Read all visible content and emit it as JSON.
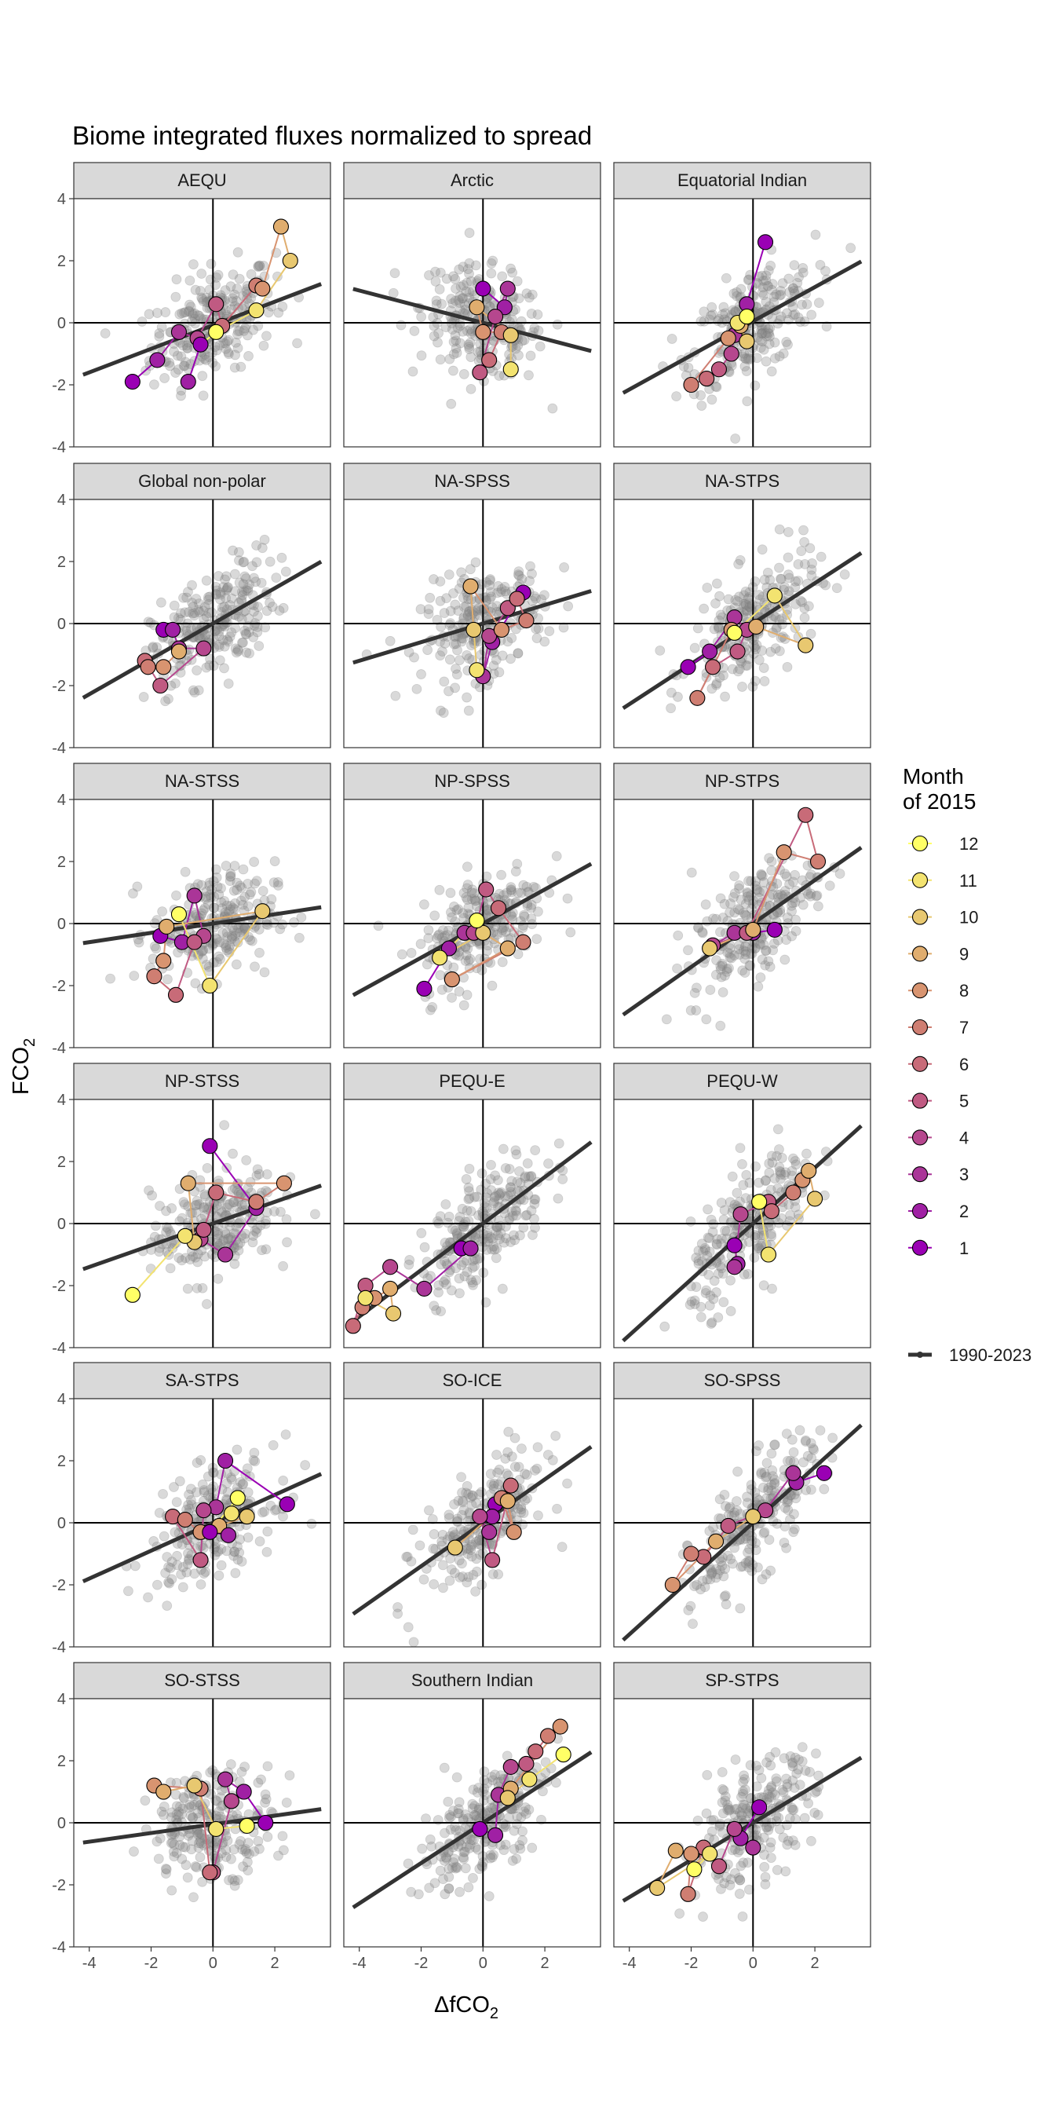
{
  "chart_data": {
    "type": "scatter",
    "title": "Biome integrated fluxes normalized to spread",
    "xlabel": "ΔfCO",
    "xlabel_sub": "2",
    "ylabel": "FCO",
    "ylabel_sub": "2",
    "xlim": [
      -4.5,
      3.8
    ],
    "ylim": [
      -4,
      4
    ],
    "x_ticks": [
      -4,
      -2,
      0,
      2
    ],
    "y_ticks": [
      -4,
      -2,
      0,
      2,
      4
    ],
    "legend": {
      "title_line1": "Month",
      "title_line2": "of 2015",
      "placement": "right",
      "months": [
        "12",
        "11",
        "10",
        "9",
        "8",
        "7",
        "6",
        "5",
        "4",
        "3",
        "2",
        "1"
      ],
      "month_colors": [
        "#ffff66",
        "#f3e370",
        "#e8c870",
        "#e0ad6e",
        "#d89470",
        "#cf7e72",
        "#c86b78",
        "#c05a82",
        "#b6478e",
        "#aa3598",
        "#a020a4",
        "#9a00b4"
      ],
      "fit_label": "1990-2023"
    },
    "panels": [
      {
        "name": "AEQU",
        "fit": [
          0.38,
          -0.08
        ],
        "months": [
          [
            -2.6,
            -1.9
          ],
          [
            -1.8,
            -1.2
          ],
          [
            -1.1,
            -0.3
          ],
          [
            -0.5,
            -0.5
          ],
          [
            0.1,
            0.6
          ],
          [
            0.3,
            -0.1
          ],
          [
            1.4,
            1.2
          ],
          [
            1.6,
            1.1
          ],
          [
            2.2,
            3.1
          ],
          [
            2.5,
            2.0
          ],
          [
            1.4,
            0.4
          ],
          [
            0.1,
            -0.3
          ],
          [
            -0.4,
            -0.7
          ],
          [
            -0.8,
            -1.9
          ]
        ]
      },
      {
        "name": "Arctic",
        "fit": [
          -0.26,
          0.0
        ],
        "months": [
          [
            0.0,
            1.1
          ],
          [
            0.7,
            0.5
          ],
          [
            0.8,
            1.1
          ],
          [
            0.4,
            0.2
          ],
          [
            -0.1,
            -1.6
          ],
          [
            0.2,
            -1.2
          ],
          [
            0.6,
            -0.3
          ],
          [
            0.0,
            -0.3
          ],
          [
            -0.2,
            0.5
          ],
          [
            0.9,
            -0.4
          ],
          [
            0.9,
            -1.5
          ]
        ]
      },
      {
        "name": "Equatorial Indian",
        "fit": [
          0.55,
          0.05
        ],
        "months": [
          [
            0.4,
            2.6
          ],
          [
            -0.2,
            0.6
          ],
          [
            -0.6,
            -0.4
          ],
          [
            -0.7,
            -1.0
          ],
          [
            -1.1,
            -1.5
          ],
          [
            -1.5,
            -1.8
          ],
          [
            -2.0,
            -2.0
          ],
          [
            -0.8,
            -0.5
          ],
          [
            -0.4,
            -0.1
          ],
          [
            -0.2,
            -0.6
          ],
          [
            -0.5,
            0.0
          ],
          [
            -0.2,
            0.2
          ]
        ]
      },
      {
        "name": "Global non-polar",
        "fit": [
          0.57,
          0.0
        ],
        "months": [
          [
            -1.6,
            -0.2
          ],
          [
            -1.3,
            -0.2
          ],
          [
            -1.1,
            -0.8
          ],
          [
            -0.3,
            -0.8
          ],
          [
            -1.7,
            -2.0
          ],
          [
            -2.2,
            -1.2
          ],
          [
            -2.1,
            -1.4
          ],
          [
            -1.6,
            -1.4
          ],
          [
            -1.1,
            -0.9
          ]
        ]
      },
      {
        "name": "NA-SPSS",
        "fit": [
          0.3,
          0.0
        ],
        "months": [
          [
            1.3,
            1.0
          ],
          [
            0.3,
            -0.6
          ],
          [
            0.0,
            -1.7
          ],
          [
            0.2,
            -0.4
          ],
          [
            0.8,
            0.5
          ],
          [
            1.1,
            0.8
          ],
          [
            1.4,
            0.1
          ],
          [
            0.6,
            -0.2
          ],
          [
            -0.4,
            1.2
          ],
          [
            -0.3,
            -0.2
          ],
          [
            -0.2,
            -1.5
          ]
        ]
      },
      {
        "name": "NA-STPS",
        "fit": [
          0.65,
          0.0
        ],
        "months": [
          [
            -2.1,
            -1.4
          ],
          [
            -1.4,
            -0.9
          ],
          [
            -0.6,
            0.2
          ],
          [
            -0.2,
            -0.2
          ],
          [
            -0.5,
            -0.9
          ],
          [
            -1.3,
            -1.4
          ],
          [
            -1.8,
            -2.4
          ],
          [
            -0.7,
            -0.2
          ],
          [
            0.1,
            -0.1
          ],
          [
            1.7,
            -0.7
          ],
          [
            0.7,
            0.9
          ],
          [
            -0.6,
            -0.3
          ]
        ]
      },
      {
        "name": "NA-STSS",
        "fit": [
          0.15,
          0.0
        ],
        "months": [
          [
            -1.7,
            -0.4
          ],
          [
            -1.0,
            -0.6
          ],
          [
            -0.6,
            0.9
          ],
          [
            -0.3,
            -0.4
          ],
          [
            -0.6,
            -0.6
          ],
          [
            -1.2,
            -2.3
          ],
          [
            -1.9,
            -1.7
          ],
          [
            -1.6,
            -1.2
          ],
          [
            -1.5,
            -0.1
          ],
          [
            1.6,
            0.4
          ],
          [
            -0.1,
            -2.0
          ],
          [
            -1.1,
            0.3
          ]
        ]
      },
      {
        "name": "NP-SPSS",
        "fit": [
          0.55,
          0.0
        ],
        "months": [
          [
            -1.9,
            -2.1
          ],
          [
            -1.1,
            -0.8
          ],
          [
            -0.6,
            -0.3
          ],
          [
            -0.3,
            -0.3
          ],
          [
            0.1,
            1.1
          ],
          [
            0.5,
            0.5
          ],
          [
            1.3,
            -0.6
          ],
          [
            -1.0,
            -1.8
          ],
          [
            0.8,
            -0.8
          ],
          [
            0.0,
            -0.3
          ],
          [
            -1.4,
            -1.1
          ],
          [
            -0.2,
            0.1
          ]
        ]
      },
      {
        "name": "NP-STPS",
        "fit": [
          0.7,
          0.0
        ],
        "months": [
          [
            0.7,
            -0.2
          ],
          [
            0.0,
            -0.3
          ],
          [
            -0.6,
            -0.3
          ],
          [
            -1.3,
            -0.7
          ],
          [
            -0.2,
            -0.3
          ],
          [
            1.7,
            3.5
          ],
          [
            2.1,
            2.0
          ],
          [
            1.0,
            2.3
          ],
          [
            0.0,
            -0.2
          ],
          [
            -1.4,
            -0.8
          ]
        ]
      },
      {
        "name": "NP-STSS",
        "fit": [
          0.35,
          0.0
        ],
        "months": [
          [
            -0.1,
            2.5
          ],
          [
            1.4,
            0.5
          ],
          [
            0.4,
            -1.0
          ],
          [
            -0.4,
            -0.5
          ],
          [
            -0.3,
            -0.2
          ],
          [
            0.1,
            1.0
          ],
          [
            1.4,
            0.7
          ],
          [
            2.3,
            1.3
          ],
          [
            -0.8,
            1.3
          ],
          [
            -0.6,
            -0.6
          ],
          [
            -0.9,
            -0.4
          ],
          [
            -2.6,
            -2.3
          ]
        ]
      },
      {
        "name": "PEQU-E",
        "fit": [
          0.75,
          0.0
        ],
        "months": [
          [
            -0.7,
            -0.8
          ],
          [
            -0.4,
            -0.8
          ],
          [
            -1.9,
            -2.1
          ],
          [
            -3.0,
            -1.4
          ],
          [
            -3.8,
            -2.0
          ],
          [
            -4.2,
            -3.3
          ],
          [
            -3.9,
            -2.7
          ],
          [
            -3.5,
            -2.4
          ],
          [
            -3.0,
            -2.1
          ],
          [
            -2.9,
            -2.9
          ],
          [
            -3.8,
            -2.4
          ]
        ]
      },
      {
        "name": "PEQU-W",
        "fit": [
          0.9,
          0.0
        ],
        "months": [
          [
            -0.6,
            -0.7
          ],
          [
            -0.5,
            -1.3
          ],
          [
            -0.6,
            -1.4
          ],
          [
            -0.4,
            0.3
          ],
          [
            0.5,
            0.7
          ],
          [
            0.6,
            0.4
          ],
          [
            1.3,
            1.0
          ],
          [
            1.6,
            1.4
          ],
          [
            1.8,
            1.7
          ],
          [
            2.0,
            0.8
          ],
          [
            0.5,
            -1.0
          ],
          [
            0.2,
            0.7
          ]
        ]
      },
      {
        "name": "SA-STPS",
        "fit": [
          0.45,
          0.0
        ],
        "months": [
          [
            2.4,
            0.6
          ],
          [
            0.4,
            2.0
          ],
          [
            0.1,
            0.5
          ],
          [
            -0.3,
            0.4
          ],
          [
            -0.4,
            -1.2
          ],
          [
            -1.3,
            0.2
          ],
          [
            -0.9,
            0.1
          ],
          [
            -0.4,
            -0.3
          ],
          [
            0.2,
            -0.1
          ],
          [
            1.1,
            0.2
          ],
          [
            0.6,
            0.3
          ],
          [
            0.8,
            0.8
          ],
          [
            -0.1,
            -0.3
          ],
          [
            0.5,
            -0.4
          ]
        ]
      },
      {
        "name": "SO-ICE",
        "fit": [
          0.7,
          0.0
        ],
        "months": [
          [
            0.4,
            0.6
          ],
          [
            0.3,
            0.2
          ],
          [
            0.2,
            -0.3
          ],
          [
            -0.1,
            0.2
          ],
          [
            0.3,
            -1.2
          ],
          [
            0.9,
            1.2
          ],
          [
            0.6,
            0.8
          ],
          [
            1.0,
            -0.3
          ],
          [
            0.8,
            0.7
          ],
          [
            -0.9,
            -0.8
          ]
        ]
      },
      {
        "name": "SO-SPSS",
        "fit": [
          0.9,
          0.0
        ],
        "months": [
          [
            2.3,
            1.6
          ],
          [
            1.4,
            1.3
          ],
          [
            1.3,
            1.6
          ],
          [
            0.4,
            0.4
          ],
          [
            -0.8,
            -0.1
          ],
          [
            -1.6,
            -1.1
          ],
          [
            -2.0,
            -1.0
          ],
          [
            -2.6,
            -2.0
          ],
          [
            -1.2,
            -0.6
          ],
          [
            0.0,
            0.2
          ]
        ]
      },
      {
        "name": "SO-STSS",
        "fit": [
          0.14,
          -0.05
        ],
        "months": [
          [
            1.7,
            0.0
          ],
          [
            1.0,
            1.0
          ],
          [
            0.4,
            1.4
          ],
          [
            0.6,
            0.7
          ],
          [
            0.0,
            -1.6
          ],
          [
            -0.1,
            -1.6
          ],
          [
            -0.4,
            1.1
          ],
          [
            -1.9,
            1.2
          ],
          [
            -1.6,
            1.0
          ],
          [
            -0.6,
            1.2
          ],
          [
            0.1,
            -0.2
          ],
          [
            1.1,
            -0.1
          ]
        ]
      },
      {
        "name": "Southern Indian",
        "fit": [
          0.65,
          0.0
        ],
        "months": [
          [
            -0.1,
            -0.2
          ],
          [
            0.4,
            -0.4
          ],
          [
            0.5,
            0.9
          ],
          [
            0.9,
            1.8
          ],
          [
            1.4,
            1.9
          ],
          [
            1.7,
            2.3
          ],
          [
            2.1,
            2.8
          ],
          [
            2.5,
            3.1
          ],
          [
            0.9,
            1.1
          ],
          [
            0.8,
            0.8
          ],
          [
            1.5,
            1.4
          ],
          [
            2.6,
            2.2
          ]
        ]
      },
      {
        "name": "SP-STPS",
        "fit": [
          0.6,
          0.0
        ],
        "months": [
          [
            0.2,
            0.5
          ],
          [
            -0.4,
            -0.5
          ],
          [
            0.0,
            -0.8
          ],
          [
            -0.6,
            -0.2
          ],
          [
            -1.1,
            -1.4
          ],
          [
            -1.6,
            -0.8
          ],
          [
            -2.1,
            -2.3
          ],
          [
            -2.0,
            -1.0
          ],
          [
            -2.5,
            -0.9
          ],
          [
            -3.1,
            -2.1
          ],
          [
            -1.4,
            -1.0
          ],
          [
            -1.9,
            -1.5
          ]
        ]
      }
    ]
  }
}
